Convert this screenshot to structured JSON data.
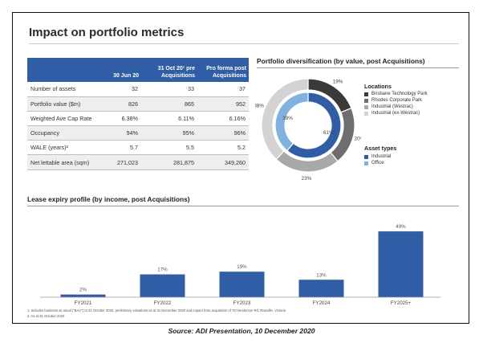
{
  "title": "Impact on portfolio metrics",
  "table": {
    "headers": [
      "",
      "30 Jun 20",
      "31 Oct 20¹ pre Acquisitions",
      "Pro forma post Acquisitions"
    ],
    "rows": [
      {
        "label": "Number of assets",
        "values": [
          "32",
          "33",
          "37"
        ]
      },
      {
        "label": "Portfolio value ($m)",
        "values": [
          "826",
          "865",
          "952"
        ]
      },
      {
        "label": "Weighted Ave Cap Rate",
        "values": [
          "6.38%",
          "6.11%",
          "6.16%"
        ]
      },
      {
        "label": "Occupancy",
        "values": [
          "94%",
          "95%",
          "96%"
        ]
      },
      {
        "label": "WALE (years)²",
        "values": [
          "5.7",
          "5.5",
          "5.2"
        ]
      },
      {
        "label": "Net lettable area (sqm)",
        "values": [
          "271,023",
          "281,875",
          "349,260"
        ]
      }
    ]
  },
  "diversification": {
    "title": "Portfolio diversification (by value, post Acquisitions)",
    "locations_heading": "Locations",
    "asset_types_heading": "Asset types",
    "colors": {
      "brisbane": "#3a3a3a",
      "rhodes": "#6e6e6e",
      "westrac": "#a9a9a9",
      "ex_westrac": "#d3d3d3",
      "industrial": "#2f5ea6",
      "office": "#7fb2df"
    }
  },
  "lease": {
    "title": "Lease expiry profile (by income, post Acquisitions)",
    "bar_color": "#2f5ea6"
  },
  "footnotes": [
    "1.  Includes business as usual (\"BAU\") to 31 October 2020, preliminary valuations as at 31 December 2020 and impact from acquisition of 78 Henderson Rd, Rowville, Victoria",
    "2.  As at 31 October 2020"
  ],
  "caption": "Source: ADI Presentation, 10 December 2020",
  "chart_data": [
    {
      "type": "pie",
      "title": "Portfolio diversification (by value, post Acquisitions)",
      "series": [
        {
          "name": "Locations",
          "labels": [
            "Brisbane Technology Park",
            "Rhodes Corporate Park",
            "Industrial (Westrac)",
            "Industrial (ex-Westrac)"
          ],
          "values": [
            19,
            20,
            23,
            38
          ]
        },
        {
          "name": "Asset types",
          "labels": [
            "Industrial",
            "Office"
          ],
          "values": [
            61,
            39
          ]
        }
      ]
    },
    {
      "type": "bar",
      "title": "Lease expiry profile (by income, post Acquisitions)",
      "categories": [
        "FY2021",
        "FY2022",
        "FY2023",
        "FY2024",
        "FY2025+"
      ],
      "values": [
        2,
        17,
        19,
        13,
        49
      ],
      "value_suffix": "%",
      "ylim": [
        0,
        55
      ]
    }
  ]
}
